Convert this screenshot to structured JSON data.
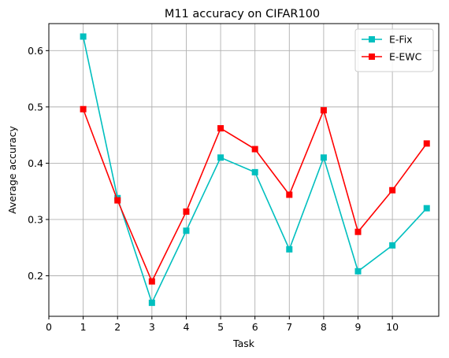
{
  "chart_data": {
    "type": "line",
    "title": "M11 accuracy on CIFAR100",
    "xlabel": "Task",
    "ylabel": "Average accuracy",
    "x": [
      1,
      2,
      3,
      4,
      5,
      6,
      7,
      8,
      9,
      10,
      11
    ],
    "xticks": [
      0,
      1,
      2,
      3,
      4,
      5,
      6,
      7,
      8,
      9,
      10
    ],
    "xtick_labels": [
      "0",
      "1",
      "2",
      "3",
      "4",
      "5",
      "6",
      "7",
      "8",
      "9",
      "10"
    ],
    "yticks": [
      0.2,
      0.3,
      0.4,
      0.5,
      0.6
    ],
    "ytick_labels": [
      "0.2",
      "0.3",
      "0.4",
      "0.5",
      "0.6"
    ],
    "xlim": [
      0,
      11.35
    ],
    "ylim": [
      0.128,
      0.648
    ],
    "grid": true,
    "legend_position": "top-right",
    "series": [
      {
        "name": "E-Fix",
        "color": "#00bfbf",
        "marker": "square",
        "values": [
          0.625,
          0.338,
          0.152,
          0.28,
          0.41,
          0.384,
          0.247,
          0.41,
          0.208,
          0.254,
          0.32
        ]
      },
      {
        "name": "E-EWC",
        "color": "#ff0000",
        "marker": "square",
        "values": [
          0.496,
          0.334,
          0.19,
          0.314,
          0.462,
          0.425,
          0.344,
          0.494,
          0.278,
          0.352,
          0.435
        ]
      }
    ]
  }
}
